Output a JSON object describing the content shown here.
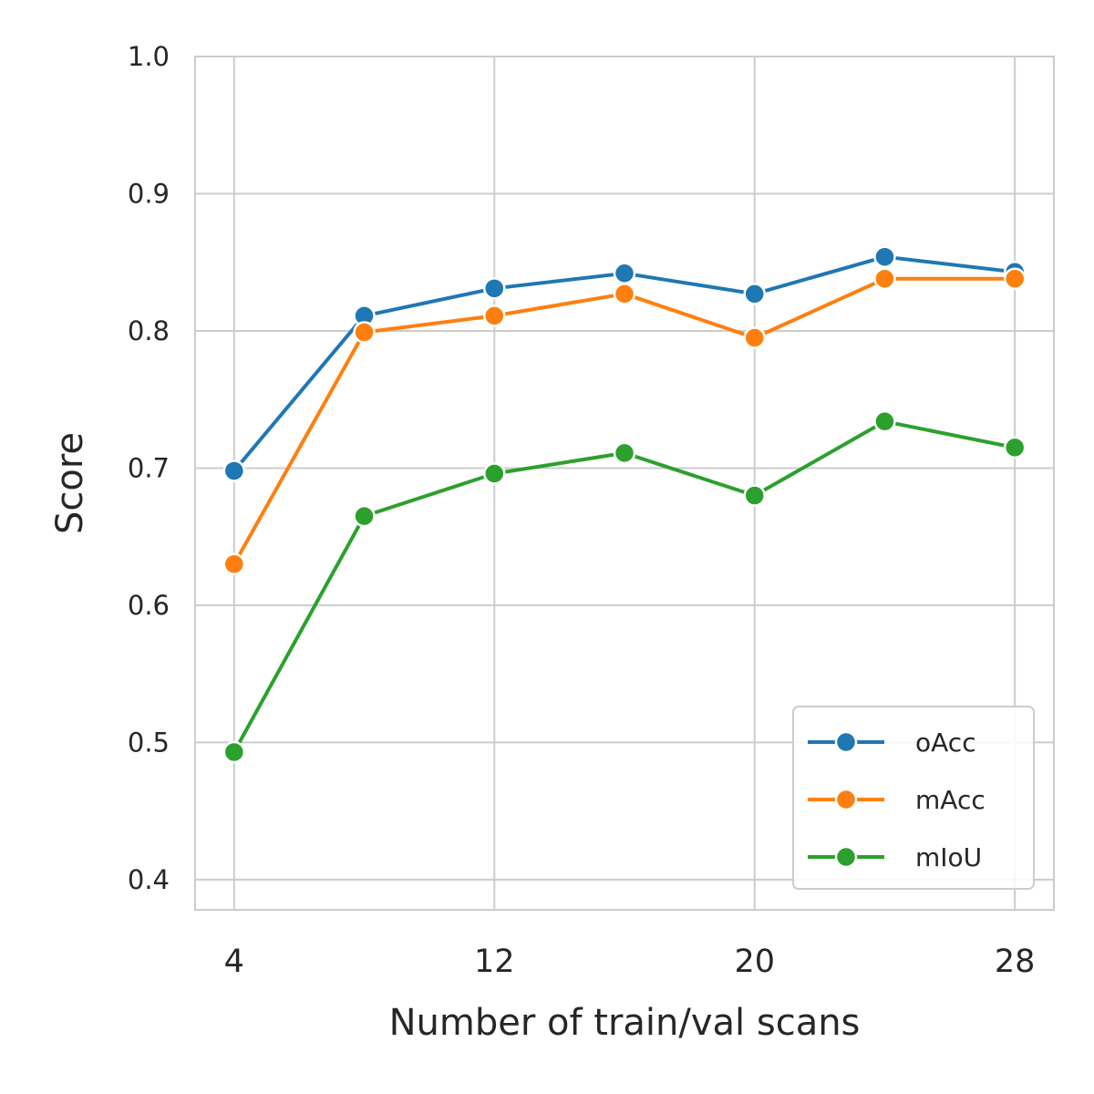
{
  "chart_data": {
    "type": "line",
    "title": "",
    "xlabel": "Number of train/val scans",
    "ylabel": "Score",
    "x": [
      4,
      8,
      12,
      16,
      20,
      24,
      28
    ],
    "xticks": [
      "4",
      "12",
      "20",
      "28"
    ],
    "xtick_values": [
      4,
      12,
      20,
      28
    ],
    "xlim": [
      2.8,
      29.2
    ],
    "yticks": [
      "0.4",
      "0.5",
      "0.6",
      "0.7",
      "0.8",
      "0.9",
      "1.0"
    ],
    "ytick_values": [
      0.4,
      0.5,
      0.6,
      0.7,
      0.8,
      0.9,
      1.0
    ],
    "ylim": [
      0.378,
      1.0
    ],
    "grid": true,
    "legend_position": "lower-right",
    "series": [
      {
        "name": "oAcc",
        "color": "#1f77b4",
        "values": [
          0.698,
          0.811,
          0.831,
          0.842,
          0.827,
          0.854,
          0.843
        ]
      },
      {
        "name": "mAcc",
        "color": "#ff7f0e",
        "values": [
          0.63,
          0.799,
          0.811,
          0.827,
          0.795,
          0.838,
          0.838
        ]
      },
      {
        "name": "mIoU",
        "color": "#2ca02c",
        "values": [
          0.493,
          0.665,
          0.696,
          0.711,
          0.68,
          0.734,
          0.715
        ]
      }
    ]
  }
}
